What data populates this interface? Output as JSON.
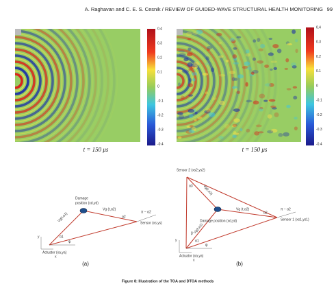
{
  "header": {
    "running_title": "A. Raghavan and C. E. S. Cesnik / REVIEW OF GUIDED-WAVE STRUCTURAL HEALTH MONITORING",
    "page": "99"
  },
  "panels": [
    {
      "colorbar_ticks": [
        0.4,
        0.3,
        0.2,
        0.1,
        0,
        -0.1,
        -0.2,
        -0.3,
        -0.4
      ],
      "time_label": "t = 150 μs"
    },
    {
      "colorbar_ticks": [
        0.4,
        0.3,
        0.2,
        0.1,
        0,
        -0.1,
        -0.2,
        -0.3,
        -0.4
      ],
      "time_label": "t = 150 μs"
    }
  ],
  "diagram_a": {
    "damage": "Damage",
    "damage_position": "position (xd,yd)",
    "vg_damage": "Vg (t,α2)",
    "vg_actuator": "Vg(t,α1)",
    "alpha1": "α1",
    "alpha2": "α2",
    "pi_minus_alpha2": "π − α2",
    "psi": "ψ",
    "sensor": "Sensor (xs,ys)",
    "actuator": "Actuator (xa,ya)",
    "y": "y",
    "x": "x",
    "label": "(a)"
  },
  "diagram_b": {
    "sensor2": "Sensor 2 (xs2,ys2)",
    "alpha3": "α3",
    "vg_s2": "Vg(t,α3)",
    "vg_a": "Vg(t,α1)",
    "vg_d": "Vg (t,α2)",
    "damage_position": "Damage position (xd,yd)",
    "alpha2": "α2",
    "pi_minus_alpha2": "π − α2",
    "sensor1": "Sensor 1 (xs1,ys1)",
    "beta": "β",
    "alpha1": "α1",
    "psi": "ψ",
    "actuator": "Actuator (xa,ya)",
    "y": "y",
    "x": "x",
    "label": "(b)"
  },
  "caption": "Figure 8: Illustration of the TOA and DTOA methods"
}
